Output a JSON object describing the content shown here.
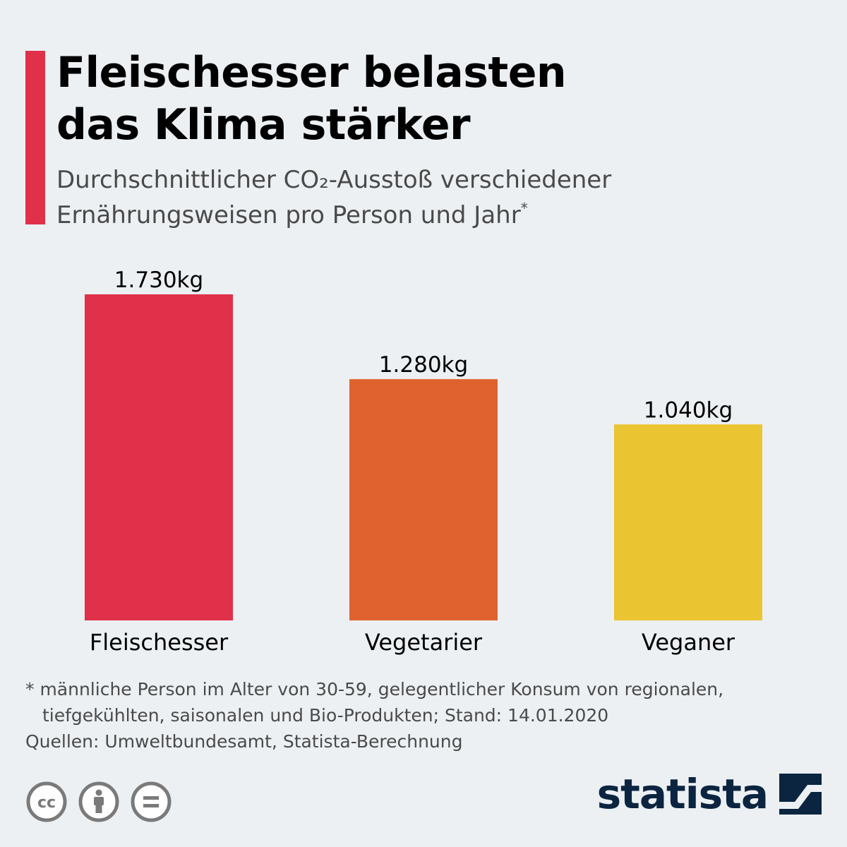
{
  "colors": {
    "accent": "#e0304a",
    "background": "#ecf0f3",
    "brand": "#0b2540"
  },
  "header": {
    "title_line1": "Fleischesser belasten",
    "title_line2": "das Klima stärker",
    "subtitle_line1": "Durchschnittlicher CO₂-Ausstoß verschiedener",
    "subtitle_line2": "Ernährungsweisen pro Person und Jahr",
    "subtitle_marker": "*"
  },
  "chart_data": {
    "type": "bar",
    "title": "Fleischesser belasten das Klima stärker",
    "subtitle": "Durchschnittlicher CO₂-Ausstoß verschiedener Ernährungsweisen pro Person und Jahr*",
    "categories": [
      "Fleischesser",
      "Vegetarier",
      "Veganer"
    ],
    "values": [
      1730,
      1280,
      1040
    ],
    "value_labels": [
      "1.730kg",
      "1.280kg",
      "1.040kg"
    ],
    "colors": [
      "#e0304a",
      "#e0622e",
      "#ebc431"
    ],
    "unit": "kg",
    "xlabel": "",
    "ylabel": "",
    "ylim": [
      0,
      1730
    ],
    "grid": false,
    "legend": "none"
  },
  "footer": {
    "note_line1": "* männliche Person im Alter von 30-59, gelegentlicher Konsum von regionalen,",
    "note_line2": "tiefgekühlten, saisonalen und Bio-Produkten; Stand: 14.01.2020",
    "sources": "Quellen: Umweltbundesamt, Statista-Berechnung",
    "license_icons": [
      "cc-icon",
      "attribution-icon",
      "no-derivatives-icon"
    ],
    "cc_text": "cc",
    "brand_name": "statista"
  }
}
